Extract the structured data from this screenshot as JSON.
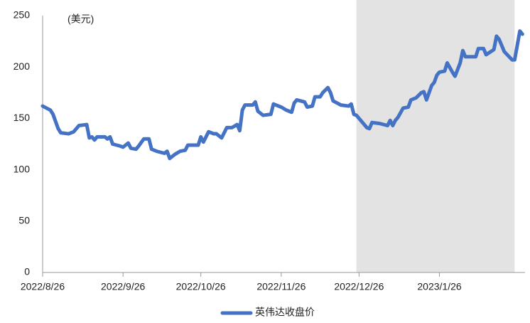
{
  "chart_data": {
    "type": "line",
    "unit_label": "(美元)",
    "x": [
      "2022/8/26",
      "2022/8/29",
      "2022/8/30",
      "2022/8/31",
      "2022/9/1",
      "2022/9/2",
      "2022/9/5",
      "2022/9/7",
      "2022/9/9",
      "2022/9/12",
      "2022/9/13",
      "2022/9/14",
      "2022/9/15",
      "2022/9/16",
      "2022/9/19",
      "2022/9/20",
      "2022/9/21",
      "2022/9/22",
      "2022/9/25",
      "2022/9/26",
      "2022/9/28",
      "2022/9/29",
      "2022/10/1",
      "2022/10/2",
      "2022/10/4",
      "2022/10/6",
      "2022/10/7",
      "2022/10/9",
      "2022/10/12",
      "2022/10/13",
      "2022/10/14",
      "2022/10/16",
      "2022/10/18",
      "2022/10/20",
      "2022/10/21",
      "2022/10/25",
      "2022/10/26",
      "2022/10/27",
      "2022/10/29",
      "2022/10/31",
      "2022/11/1",
      "2022/11/3",
      "2022/11/5",
      "2022/11/7",
      "2022/11/9",
      "2022/11/10",
      "2022/11/11",
      "2022/11/12",
      "2022/11/15",
      "2022/11/16",
      "2022/11/17",
      "2022/11/19",
      "2022/11/22",
      "2022/11/23",
      "2022/11/26",
      "2022/11/28",
      "2022/11/30",
      "2022/12/1",
      "2022/12/2",
      "2022/12/5",
      "2022/12/6",
      "2022/12/8",
      "2022/12/9",
      "2022/12/11",
      "2022/12/12",
      "2022/12/14",
      "2022/12/15",
      "2022/12/16",
      "2022/12/19",
      "2022/12/22",
      "2022/12/23",
      "2022/12/24",
      "2022/12/25",
      "2022/12/27",
      "2022/12/29",
      "2022/12/30",
      "2022/12/31",
      "2023/1/3",
      "2023/1/6",
      "2023/1/7",
      "2023/1/8",
      "2023/1/9",
      "2023/1/10",
      "2023/1/12",
      "2023/1/14",
      "2023/1/15",
      "2023/1/17",
      "2023/1/19",
      "2023/1/20",
      "2023/1/21",
      "2023/1/23",
      "2023/1/24",
      "2023/1/25",
      "2023/1/26",
      "2023/1/28",
      "2023/1/29",
      "2023/1/31",
      "2023/2/1",
      "2023/2/3",
      "2023/2/4",
      "2023/2/5",
      "2023/2/9",
      "2023/2/10",
      "2023/2/12",
      "2023/2/13",
      "2023/2/16",
      "2023/2/17",
      "2023/2/18",
      "2023/2/20",
      "2023/2/23",
      "2023/2/24",
      "2023/2/26",
      "2023/2/27"
    ],
    "series": [
      {
        "name": "英伟达收盘价",
        "color": "#4472c4",
        "values": [
          162,
          158,
          154,
          147,
          140,
          136,
          135,
          137,
          143,
          144,
          131,
          132,
          129,
          132,
          132,
          130,
          132,
          125,
          123,
          122,
          126,
          121,
          120,
          123,
          130,
          130,
          120,
          118,
          116,
          118,
          111,
          115,
          118,
          119,
          124,
          124,
          132,
          127,
          137,
          135,
          135,
          131,
          141,
          141,
          144,
          138,
          158,
          163,
          163,
          166,
          157,
          153,
          154,
          164,
          161,
          158,
          156,
          165,
          168,
          166,
          161,
          162,
          171,
          171,
          175,
          180,
          175,
          167,
          163,
          162,
          164,
          154,
          153,
          147,
          141,
          140,
          146,
          145,
          143,
          148,
          143,
          148,
          151,
          160,
          161,
          168,
          170,
          175,
          176,
          168,
          182,
          185,
          192,
          195,
          196,
          204,
          195,
          191,
          204,
          216,
          210,
          210,
          218,
          218,
          212,
          217,
          230,
          227,
          215,
          207,
          207,
          235,
          232
        ]
      }
    ],
    "xlim": [
      "2022/8/26",
      "2023/2/28"
    ],
    "xticks": [
      "2022/8/26",
      "2022/9/26",
      "2022/10/26",
      "2022/11/26",
      "2022/12/26",
      "2023/1/26"
    ],
    "ylim": [
      0,
      250
    ],
    "yticks": [
      0,
      50,
      100,
      150,
      200,
      250
    ],
    "highlight_range": [
      "2022/12/25",
      "2023/2/24"
    ],
    "highlight_color": "#e3e3e3",
    "grid": false,
    "legend": "bottom"
  }
}
